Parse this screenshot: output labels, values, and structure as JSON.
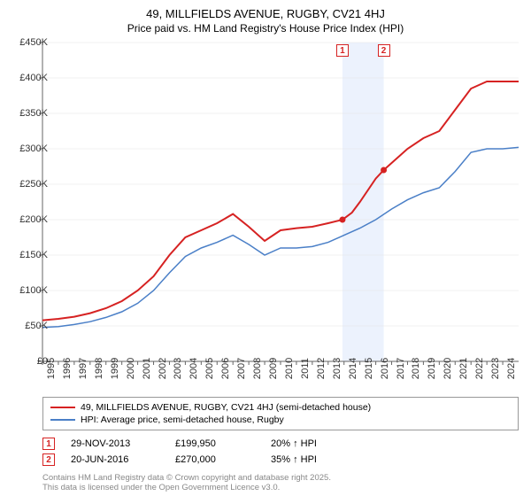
{
  "title": "49, MILLFIELDS AVENUE, RUGBY, CV21 4HJ",
  "subtitle": "Price paid vs. HM Land Registry's House Price Index (HPI)",
  "chart": {
    "type": "line",
    "background_color": "#ffffff",
    "grid_color": "#e5e5e5",
    "axis_color": "#666666",
    "xlim": [
      1995,
      2025
    ],
    "ylim": [
      0,
      450000
    ],
    "yticks": [
      0,
      50000,
      100000,
      150000,
      200000,
      250000,
      300000,
      350000,
      400000,
      450000
    ],
    "ytick_labels": [
      "£0",
      "£50K",
      "£100K",
      "£150K",
      "£200K",
      "£250K",
      "£300K",
      "£350K",
      "£400K",
      "£450K"
    ],
    "xticks": [
      1995,
      1996,
      1997,
      1998,
      1999,
      2000,
      2001,
      2002,
      2003,
      2004,
      2005,
      2006,
      2007,
      2008,
      2009,
      2010,
      2011,
      2012,
      2013,
      2014,
      2015,
      2016,
      2017,
      2018,
      2019,
      2020,
      2021,
      2022,
      2023,
      2024
    ],
    "xtick_labels": [
      "1995",
      "1996",
      "1997",
      "1998",
      "1999",
      "2000",
      "2001",
      "2002",
      "2003",
      "2004",
      "2005",
      "2006",
      "2007",
      "2008",
      "2009",
      "2010",
      "2011",
      "2012",
      "2013",
      "2014",
      "2015",
      "2016",
      "2017",
      "2018",
      "2019",
      "2020",
      "2021",
      "2022",
      "2023",
      "2024"
    ],
    "highlight_band": {
      "x_start": 2013.9,
      "x_end": 2016.5
    },
    "series": [
      {
        "name": "property",
        "label": "49, MILLFIELDS AVENUE, RUGBY, CV21 4HJ (semi-detached house)",
        "color": "#d62222",
        "line_width": 2,
        "data": [
          [
            1995,
            58000
          ],
          [
            1996,
            60000
          ],
          [
            1997,
            63000
          ],
          [
            1998,
            68000
          ],
          [
            1999,
            75000
          ],
          [
            2000,
            85000
          ],
          [
            2001,
            100000
          ],
          [
            2002,
            120000
          ],
          [
            2003,
            150000
          ],
          [
            2004,
            175000
          ],
          [
            2005,
            185000
          ],
          [
            2006,
            195000
          ],
          [
            2007,
            208000
          ],
          [
            2008,
            190000
          ],
          [
            2009,
            170000
          ],
          [
            2010,
            185000
          ],
          [
            2011,
            188000
          ],
          [
            2012,
            190000
          ],
          [
            2013,
            195000
          ],
          [
            2013.9,
            199950
          ],
          [
            2014.5,
            210000
          ],
          [
            2015,
            225000
          ],
          [
            2016,
            258000
          ],
          [
            2016.5,
            270000
          ],
          [
            2017,
            280000
          ],
          [
            2018,
            300000
          ],
          [
            2019,
            315000
          ],
          [
            2020,
            325000
          ],
          [
            2021,
            355000
          ],
          [
            2022,
            385000
          ],
          [
            2023,
            395000
          ],
          [
            2024,
            395000
          ],
          [
            2025,
            395000
          ]
        ]
      },
      {
        "name": "hpi",
        "label": "HPI: Average price, semi-detached house, Rugby",
        "color": "#4a7fc7",
        "line_width": 1.5,
        "data": [
          [
            1995,
            48000
          ],
          [
            1996,
            49000
          ],
          [
            1997,
            52000
          ],
          [
            1998,
            56000
          ],
          [
            1999,
            62000
          ],
          [
            2000,
            70000
          ],
          [
            2001,
            82000
          ],
          [
            2002,
            100000
          ],
          [
            2003,
            125000
          ],
          [
            2004,
            148000
          ],
          [
            2005,
            160000
          ],
          [
            2006,
            168000
          ],
          [
            2007,
            178000
          ],
          [
            2008,
            165000
          ],
          [
            2009,
            150000
          ],
          [
            2010,
            160000
          ],
          [
            2011,
            160000
          ],
          [
            2012,
            162000
          ],
          [
            2013,
            168000
          ],
          [
            2014,
            178000
          ],
          [
            2015,
            188000
          ],
          [
            2016,
            200000
          ],
          [
            2017,
            215000
          ],
          [
            2018,
            228000
          ],
          [
            2019,
            238000
          ],
          [
            2020,
            245000
          ],
          [
            2021,
            268000
          ],
          [
            2022,
            295000
          ],
          [
            2023,
            300000
          ],
          [
            2024,
            300000
          ],
          [
            2025,
            302000
          ]
        ]
      }
    ],
    "markers": [
      {
        "n": "1",
        "x": 2013.9,
        "y_offset": -18,
        "color": "#d62222"
      },
      {
        "n": "2",
        "x": 2016.5,
        "y_offset": -18,
        "color": "#d62222"
      }
    ],
    "sale_points": [
      {
        "x": 2013.9,
        "y": 199950,
        "color": "#d62222"
      },
      {
        "x": 2016.5,
        "y": 270000,
        "color": "#d62222"
      }
    ]
  },
  "legend": {
    "items": [
      {
        "color": "#d62222",
        "line_width": 2,
        "label": "49, MILLFIELDS AVENUE, RUGBY, CV21 4HJ (semi-detached house)"
      },
      {
        "color": "#4a7fc7",
        "line_width": 1.5,
        "label": "HPI: Average price, semi-detached house, Rugby"
      }
    ]
  },
  "sales_table": [
    {
      "n": "1",
      "color": "#d62222",
      "date": "29-NOV-2013",
      "price": "£199,950",
      "hpi": "20% ↑ HPI"
    },
    {
      "n": "2",
      "color": "#d62222",
      "date": "20-JUN-2016",
      "price": "£270,000",
      "hpi": "35% ↑ HPI"
    }
  ],
  "attribution": {
    "line1": "Contains HM Land Registry data © Crown copyright and database right 2025.",
    "line2": "This data is licensed under the Open Government Licence v3.0."
  }
}
